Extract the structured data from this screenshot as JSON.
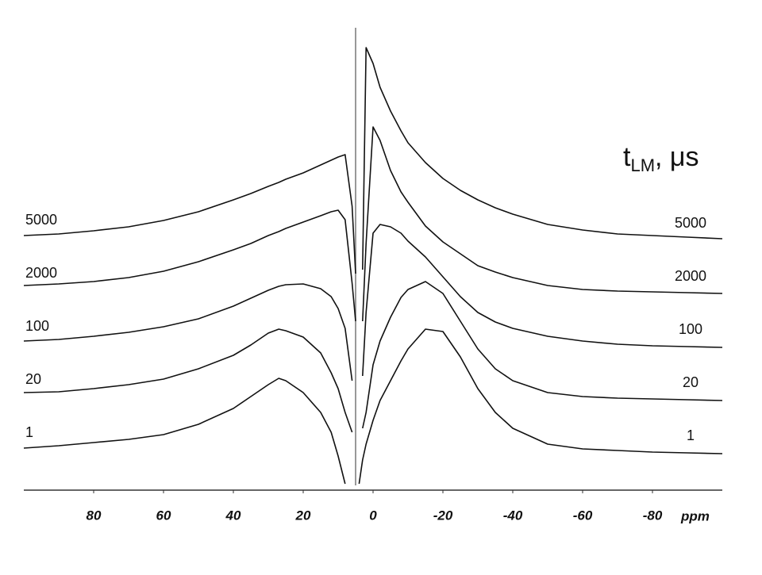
{
  "chart_data": {
    "type": "line",
    "title": {
      "main": "t",
      "sub": "LM",
      "suffix": ", μs"
    },
    "x_label": "ppm",
    "xlim": [
      100,
      -100
    ],
    "xticks": [
      80,
      60,
      40,
      20,
      0,
      -20,
      -40,
      -60,
      -80
    ],
    "x": [
      100,
      90,
      80,
      70,
      60,
      50,
      40,
      35,
      30,
      27,
      25,
      20,
      15,
      12,
      10,
      8,
      6,
      5,
      4,
      3,
      2,
      0,
      -2,
      -5,
      -8,
      -10,
      -15,
      -20,
      -25,
      -30,
      -35,
      -40,
      -50,
      -60,
      -70,
      -80,
      -90,
      -100
    ],
    "series": [
      {
        "name": "1",
        "color": "#111111",
        "values": [
          3,
          6,
          10,
          14,
          20,
          33,
          53,
          68,
          83,
          91,
          88,
          73,
          48,
          23,
          -7,
          -42,
          null,
          null,
          -42,
          -12,
          8,
          38,
          63,
          88,
          113,
          128,
          153,
          150,
          118,
          78,
          48,
          28,
          8,
          2,
          0,
          -2,
          -3,
          -4
        ]
      },
      {
        "name": "20",
        "color": "#111111",
        "values": [
          6,
          7,
          11,
          16,
          23,
          36,
          53,
          66,
          81,
          86,
          84,
          76,
          56,
          31,
          11,
          -19,
          -44,
          null,
          null,
          -39,
          -19,
          41,
          71,
          101,
          126,
          136,
          146,
          131,
          96,
          61,
          36,
          21,
          6,
          1,
          -1,
          -2,
          -3,
          -4
        ]
      },
      {
        "name": "100",
        "color": "#111111",
        "values": [
          4,
          6,
          10,
          15,
          22,
          32,
          48,
          58,
          68,
          73,
          75,
          76,
          70,
          60,
          45,
          20,
          -46,
          null,
          null,
          -40,
          40,
          140,
          151,
          148,
          140,
          130,
          110,
          85,
          60,
          40,
          28,
          20,
          10,
          4,
          0,
          -2,
          -3,
          -4
        ]
      },
      {
        "name": "2000",
        "color": "#111111",
        "values": [
          7,
          9,
          12,
          17,
          25,
          37,
          52,
          60,
          70,
          75,
          79,
          87,
          95,
          100,
          102,
          90,
          10,
          -38,
          null,
          -38,
          60,
          207,
          190,
          152,
          125,
          112,
          82,
          62,
          47,
          32,
          24,
          17,
          7,
          2,
          0,
          -1,
          -2,
          -3
        ]
      },
      {
        "name": "5000",
        "color": "#111111",
        "values": [
          3,
          5,
          9,
          14,
          22,
          33,
          48,
          56,
          65,
          70,
          74,
          82,
          92,
          98,
          102,
          105,
          40,
          -45,
          null,
          -40,
          240,
          220,
          190,
          160,
          135,
          120,
          95,
          75,
          60,
          48,
          38,
          30,
          17,
          10,
          5,
          3,
          1,
          -1
        ]
      }
    ]
  }
}
